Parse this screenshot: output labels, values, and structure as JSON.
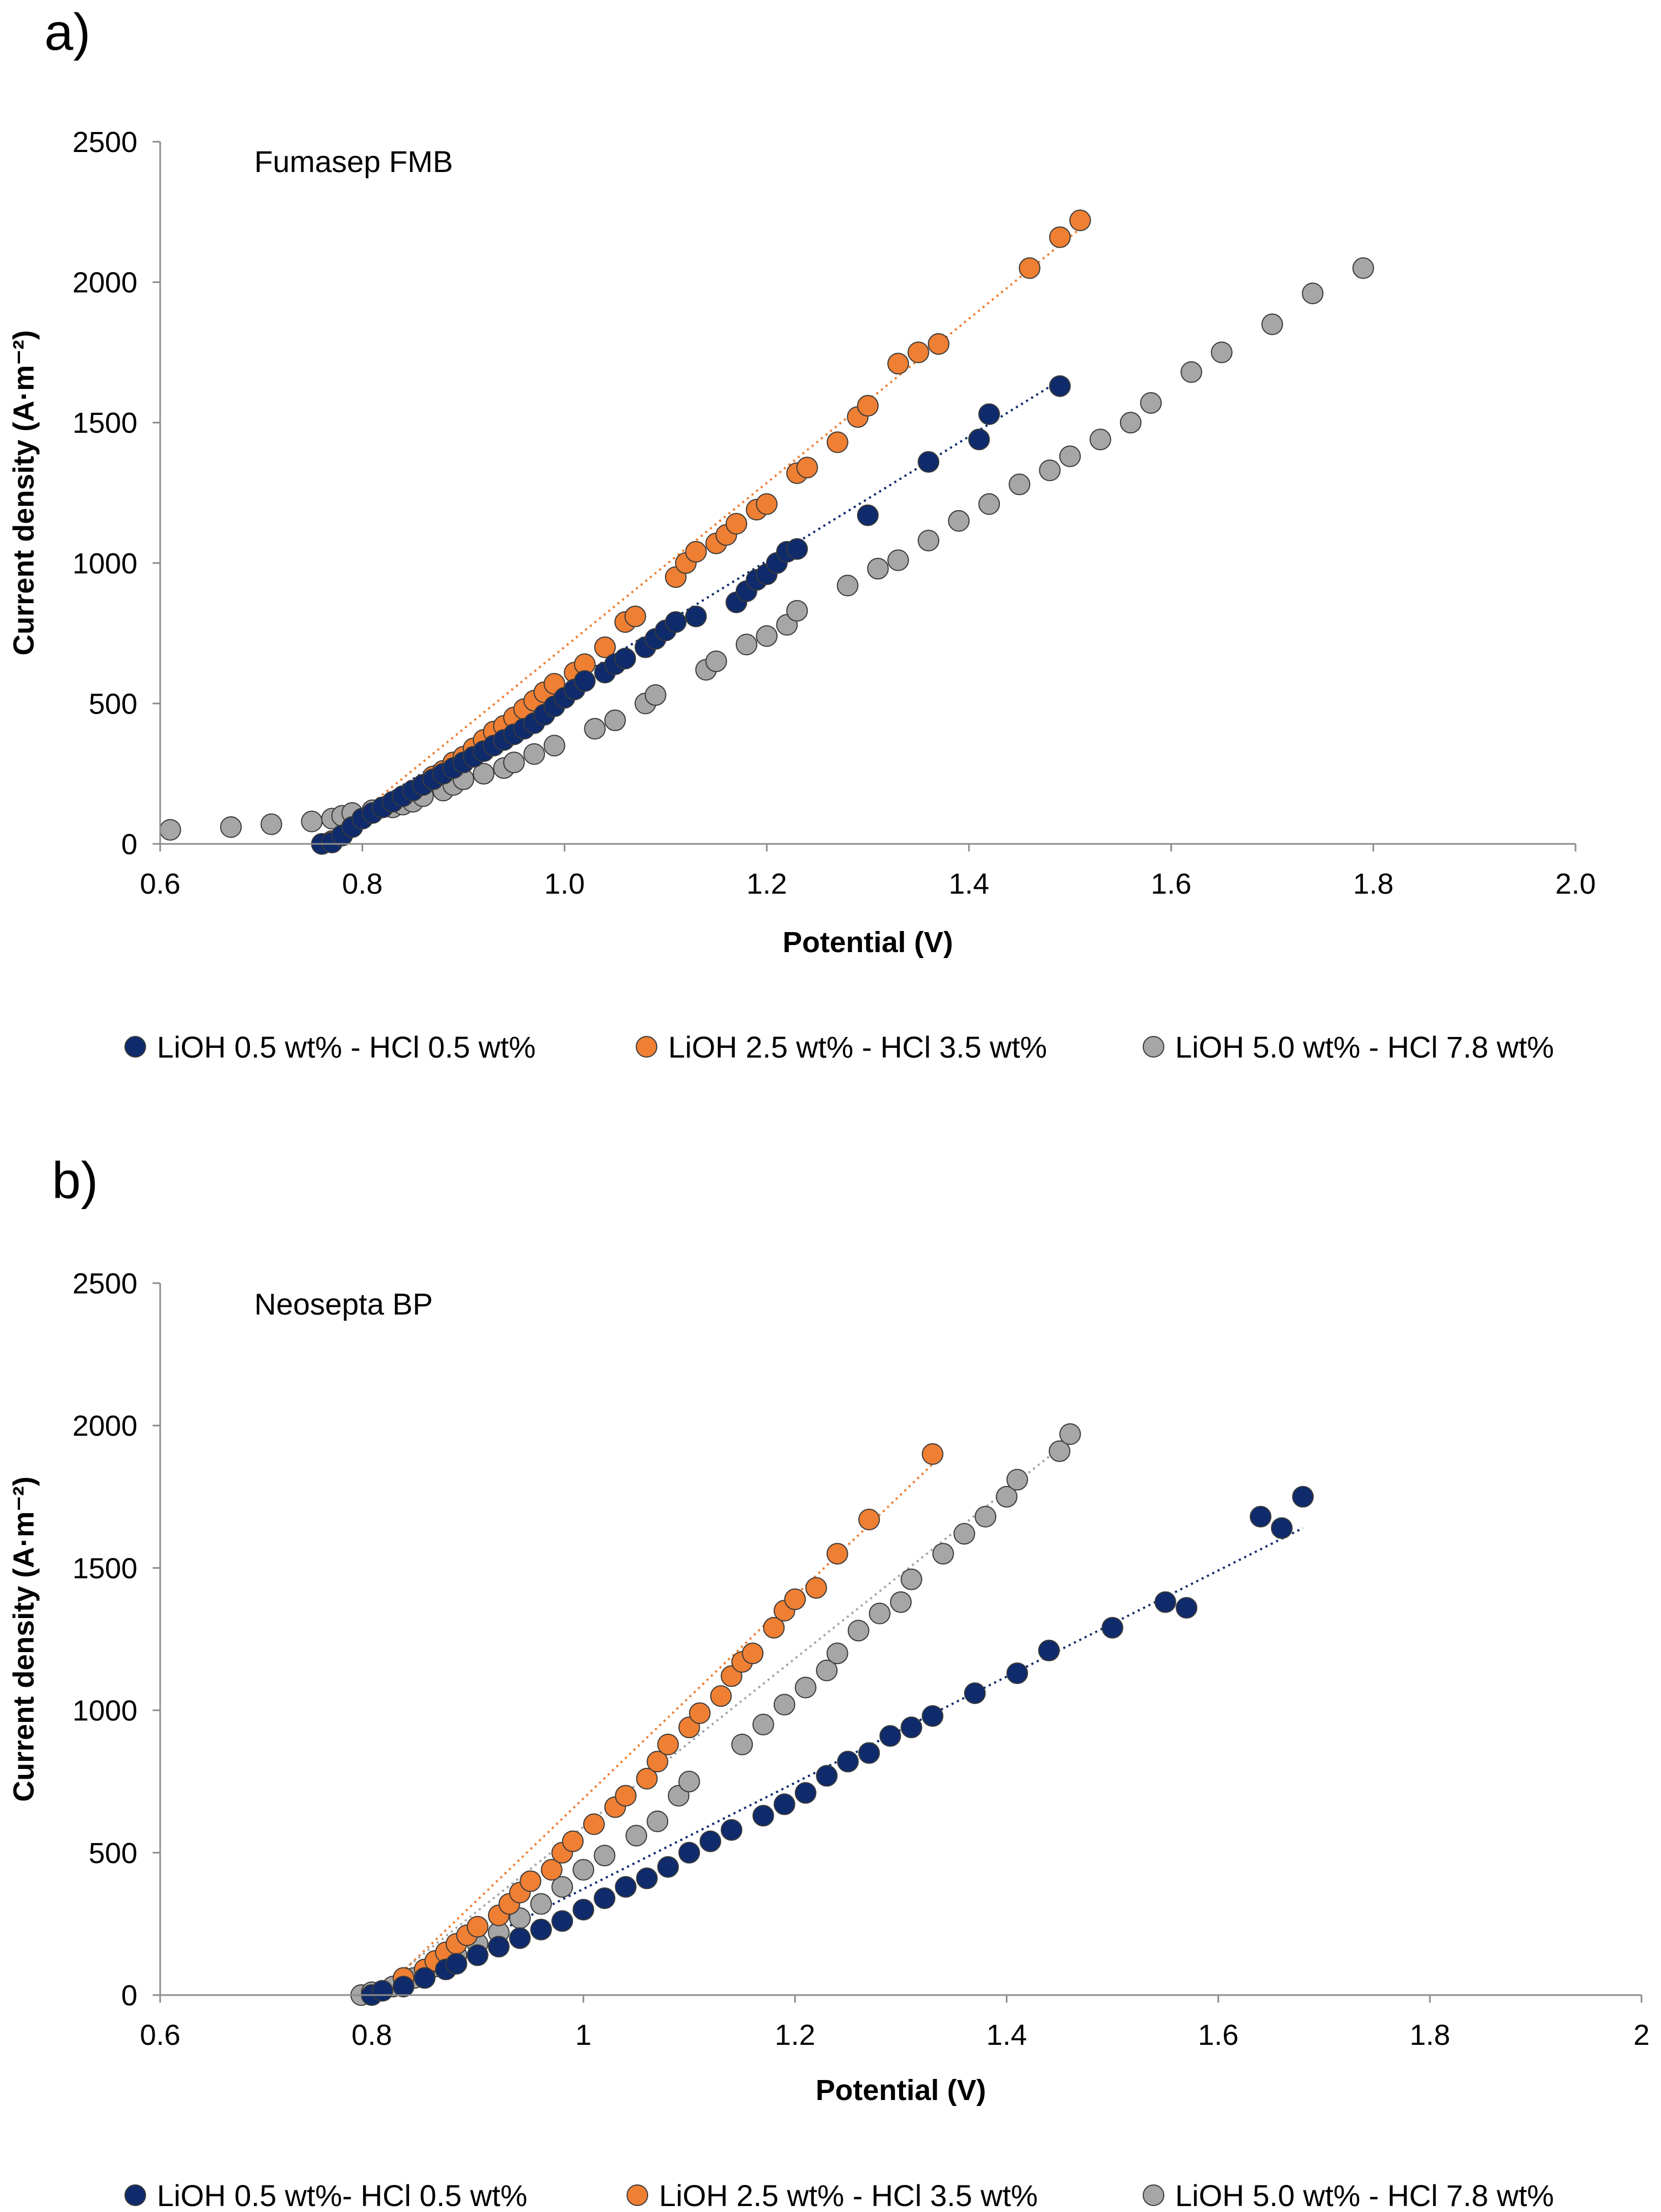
{
  "chart_data": [
    {
      "type": "scatter",
      "panel_label": "a)",
      "title": "Fumasep FMB",
      "xlabel": "Potential (V)",
      "ylabel": "Current density (A·m⁻²)",
      "xlim": [
        0.6,
        2.0
      ],
      "ylim": [
        0,
        2500
      ],
      "xticks": [
        "0.6",
        "0.8",
        "1.0",
        "1.2",
        "1.4",
        "1.6",
        "1.8",
        "2.0"
      ],
      "yticks": [
        "0",
        "500",
        "1000",
        "1500",
        "2000",
        "2500"
      ],
      "series": [
        {
          "name": "LiOH 0.5 wt% - HCl 0.5 wt%",
          "color": "#0f2b6b",
          "trend": [
            [
              0.8,
              120
            ],
            [
              1.49,
              1650
            ]
          ],
          "points": [
            [
              0.76,
              0
            ],
            [
              0.77,
              5
            ],
            [
              0.78,
              30
            ],
            [
              0.79,
              60
            ],
            [
              0.8,
              90
            ],
            [
              0.81,
              110
            ],
            [
              0.82,
              130
            ],
            [
              0.83,
              150
            ],
            [
              0.84,
              170
            ],
            [
              0.85,
              190
            ],
            [
              0.86,
              210
            ],
            [
              0.87,
              230
            ],
            [
              0.88,
              250
            ],
            [
              0.89,
              270
            ],
            [
              0.9,
              290
            ],
            [
              0.91,
              310
            ],
            [
              0.92,
              330
            ],
            [
              0.93,
              350
            ],
            [
              0.94,
              370
            ],
            [
              0.95,
              390
            ],
            [
              0.96,
              410
            ],
            [
              0.97,
              430
            ],
            [
              0.98,
              460
            ],
            [
              0.99,
              490
            ],
            [
              1.0,
              520
            ],
            [
              1.01,
              550
            ],
            [
              1.02,
              580
            ],
            [
              1.04,
              610
            ],
            [
              1.05,
              640
            ],
            [
              1.06,
              660
            ],
            [
              1.08,
              700
            ],
            [
              1.09,
              730
            ],
            [
              1.1,
              760
            ],
            [
              1.11,
              790
            ],
            [
              1.13,
              810
            ],
            [
              1.17,
              860
            ],
            [
              1.18,
              900
            ],
            [
              1.19,
              940
            ],
            [
              1.2,
              960
            ],
            [
              1.21,
              1000
            ],
            [
              1.22,
              1040
            ],
            [
              1.23,
              1050
            ],
            [
              1.3,
              1170
            ],
            [
              1.36,
              1360
            ],
            [
              1.41,
              1440
            ],
            [
              1.42,
              1530
            ],
            [
              1.49,
              1630
            ]
          ]
        },
        {
          "name": "LiOH 2.5 wt% - HCl 3.5 wt%",
          "color": "#ef7f33",
          "trend": [
            [
              0.76,
              0
            ],
            [
              1.52,
              2220
            ]
          ],
          "points": [
            [
              0.76,
              0
            ],
            [
              0.77,
              10
            ],
            [
              0.78,
              30
            ],
            [
              0.79,
              60
            ],
            [
              0.8,
              90
            ],
            [
              0.82,
              130
            ],
            [
              0.84,
              170
            ],
            [
              0.86,
              210
            ],
            [
              0.87,
              240
            ],
            [
              0.88,
              260
            ],
            [
              0.89,
              290
            ],
            [
              0.9,
              310
            ],
            [
              0.91,
              340
            ],
            [
              0.92,
              370
            ],
            [
              0.93,
              400
            ],
            [
              0.94,
              420
            ],
            [
              0.95,
              450
            ],
            [
              0.96,
              480
            ],
            [
              0.97,
              510
            ],
            [
              0.98,
              540
            ],
            [
              0.99,
              570
            ],
            [
              1.01,
              610
            ],
            [
              1.02,
              640
            ],
            [
              1.04,
              700
            ],
            [
              1.06,
              790
            ],
            [
              1.07,
              810
            ],
            [
              1.11,
              950
            ],
            [
              1.12,
              1000
            ],
            [
              1.13,
              1040
            ],
            [
              1.15,
              1070
            ],
            [
              1.16,
              1100
            ],
            [
              1.17,
              1140
            ],
            [
              1.19,
              1190
            ],
            [
              1.2,
              1210
            ],
            [
              1.23,
              1320
            ],
            [
              1.24,
              1340
            ],
            [
              1.27,
              1430
            ],
            [
              1.29,
              1520
            ],
            [
              1.3,
              1560
            ],
            [
              1.33,
              1710
            ],
            [
              1.35,
              1750
            ],
            [
              1.37,
              1780
            ],
            [
              1.46,
              2050
            ],
            [
              1.49,
              2160
            ],
            [
              1.51,
              2220
            ]
          ]
        },
        {
          "name": "LiOH 5.0 wt% - HCl 7.8 wt%",
          "color": "#a6a6a6",
          "trend": null,
          "points": [
            [
              0.61,
              50
            ],
            [
              0.67,
              60
            ],
            [
              0.71,
              70
            ],
            [
              0.75,
              80
            ],
            [
              0.77,
              90
            ],
            [
              0.78,
              100
            ],
            [
              0.79,
              110
            ],
            [
              0.81,
              120
            ],
            [
              0.83,
              130
            ],
            [
              0.84,
              140
            ],
            [
              0.85,
              150
            ],
            [
              0.86,
              170
            ],
            [
              0.88,
              190
            ],
            [
              0.89,
              210
            ],
            [
              0.9,
              230
            ],
            [
              0.92,
              250
            ],
            [
              0.94,
              270
            ],
            [
              0.95,
              290
            ],
            [
              0.97,
              320
            ],
            [
              0.99,
              350
            ],
            [
              1.03,
              410
            ],
            [
              1.05,
              440
            ],
            [
              1.08,
              500
            ],
            [
              1.09,
              530
            ],
            [
              1.14,
              620
            ],
            [
              1.15,
              650
            ],
            [
              1.18,
              710
            ],
            [
              1.2,
              740
            ],
            [
              1.22,
              780
            ],
            [
              1.23,
              830
            ],
            [
              1.28,
              920
            ],
            [
              1.31,
              980
            ],
            [
              1.33,
              1010
            ],
            [
              1.36,
              1080
            ],
            [
              1.39,
              1150
            ],
            [
              1.42,
              1210
            ],
            [
              1.45,
              1280
            ],
            [
              1.48,
              1330
            ],
            [
              1.5,
              1380
            ],
            [
              1.53,
              1440
            ],
            [
              1.56,
              1500
            ],
            [
              1.58,
              1570
            ],
            [
              1.62,
              1680
            ],
            [
              1.65,
              1750
            ],
            [
              1.7,
              1850
            ],
            [
              1.74,
              1960
            ],
            [
              1.79,
              2050
            ]
          ]
        }
      ],
      "legend": [
        "LiOH 0.5 wt% - HCl 0.5 wt%",
        "LiOH 2.5 wt% - HCl 3.5 wt%",
        "LiOH 5.0 wt% - HCl 7.8 wt%"
      ]
    },
    {
      "type": "scatter",
      "panel_label": "b)",
      "title": "Neosepta BP",
      "xlabel": "Potential (V)",
      "ylabel": "Current density (A·m⁻²)",
      "xlim": [
        0.6,
        2.0
      ],
      "ylim": [
        0,
        2500
      ],
      "xticks": [
        "0.6",
        "0.8",
        "1",
        "1.2",
        "1.4",
        "1.6",
        "1.8",
        "2"
      ],
      "yticks": [
        "0",
        "500",
        "1000",
        "1500",
        "2000",
        "2500"
      ],
      "series": [
        {
          "name": "LiOH 0.5 wt%- HCl 0.5 wt%",
          "color": "#0f2b6b",
          "trend": [
            [
              0.8,
              0
            ],
            [
              1.68,
              1640
            ]
          ],
          "points": [
            [
              0.8,
              0
            ],
            [
              0.81,
              15
            ],
            [
              0.83,
              30
            ],
            [
              0.85,
              60
            ],
            [
              0.87,
              90
            ],
            [
              0.88,
              110
            ],
            [
              0.9,
              140
            ],
            [
              0.92,
              170
            ],
            [
              0.94,
              200
            ],
            [
              0.96,
              230
            ],
            [
              0.98,
              260
            ],
            [
              1.0,
              300
            ],
            [
              1.02,
              340
            ],
            [
              1.04,
              380
            ],
            [
              1.06,
              410
            ],
            [
              1.08,
              450
            ],
            [
              1.1,
              500
            ],
            [
              1.12,
              540
            ],
            [
              1.14,
              580
            ],
            [
              1.17,
              630
            ],
            [
              1.19,
              670
            ],
            [
              1.21,
              710
            ],
            [
              1.23,
              770
            ],
            [
              1.25,
              820
            ],
            [
              1.27,
              850
            ],
            [
              1.29,
              910
            ],
            [
              1.31,
              940
            ],
            [
              1.33,
              980
            ],
            [
              1.37,
              1060
            ],
            [
              1.41,
              1130
            ],
            [
              1.44,
              1210
            ],
            [
              1.5,
              1290
            ],
            [
              1.55,
              1380
            ],
            [
              1.57,
              1360
            ],
            [
              1.64,
              1680
            ],
            [
              1.66,
              1640
            ],
            [
              1.68,
              1750
            ]
          ]
        },
        {
          "name": "LiOH 2.5 wt% - HCl 3.5 wt%",
          "color": "#ef7f33",
          "trend": [
            [
              0.82,
              50
            ],
            [
              1.34,
              1900
            ]
          ],
          "points": [
            [
              0.83,
              60
            ],
            [
              0.85,
              90
            ],
            [
              0.86,
              120
            ],
            [
              0.87,
              150
            ],
            [
              0.88,
              180
            ],
            [
              0.89,
              210
            ],
            [
              0.9,
              240
            ],
            [
              0.92,
              280
            ],
            [
              0.93,
              320
            ],
            [
              0.94,
              360
            ],
            [
              0.95,
              400
            ],
            [
              0.97,
              440
            ],
            [
              0.98,
              500
            ],
            [
              0.99,
              540
            ],
            [
              1.01,
              600
            ],
            [
              1.03,
              660
            ],
            [
              1.04,
              700
            ],
            [
              1.06,
              760
            ],
            [
              1.07,
              820
            ],
            [
              1.08,
              880
            ],
            [
              1.1,
              940
            ],
            [
              1.11,
              990
            ],
            [
              1.13,
              1050
            ],
            [
              1.14,
              1120
            ],
            [
              1.15,
              1170
            ],
            [
              1.16,
              1200
            ],
            [
              1.18,
              1290
            ],
            [
              1.19,
              1350
            ],
            [
              1.2,
              1390
            ],
            [
              1.22,
              1430
            ],
            [
              1.24,
              1550
            ],
            [
              1.27,
              1670
            ],
            [
              1.33,
              1900
            ]
          ]
        },
        {
          "name": "LiOH 5.0 wt% - HCl 7.8 wt%",
          "color": "#a6a6a6",
          "trend": [
            [
              0.8,
              0
            ],
            [
              1.46,
              1950
            ]
          ],
          "points": [
            [
              0.79,
              0
            ],
            [
              0.8,
              10
            ],
            [
              0.82,
              30
            ],
            [
              0.84,
              60
            ],
            [
              0.86,
              100
            ],
            [
              0.88,
              140
            ],
            [
              0.9,
              180
            ],
            [
              0.92,
              220
            ],
            [
              0.94,
              270
            ],
            [
              0.96,
              320
            ],
            [
              0.98,
              380
            ],
            [
              1.0,
              440
            ],
            [
              1.02,
              490
            ],
            [
              1.05,
              560
            ],
            [
              1.07,
              610
            ],
            [
              1.09,
              700
            ],
            [
              1.1,
              750
            ],
            [
              1.15,
              880
            ],
            [
              1.17,
              950
            ],
            [
              1.19,
              1020
            ],
            [
              1.21,
              1080
            ],
            [
              1.23,
              1140
            ],
            [
              1.24,
              1200
            ],
            [
              1.26,
              1280
            ],
            [
              1.28,
              1340
            ],
            [
              1.3,
              1380
            ],
            [
              1.31,
              1460
            ],
            [
              1.34,
              1550
            ],
            [
              1.36,
              1620
            ],
            [
              1.38,
              1680
            ],
            [
              1.4,
              1750
            ],
            [
              1.41,
              1810
            ],
            [
              1.45,
              1910
            ],
            [
              1.46,
              1970
            ]
          ]
        }
      ],
      "legend": [
        "LiOH 0.5 wt%- HCl 0.5 wt%",
        "LiOH 2.5 wt% - HCl 3.5 wt%",
        "LiOH 5.0 wt% - HCl 7.8 wt%"
      ]
    }
  ]
}
